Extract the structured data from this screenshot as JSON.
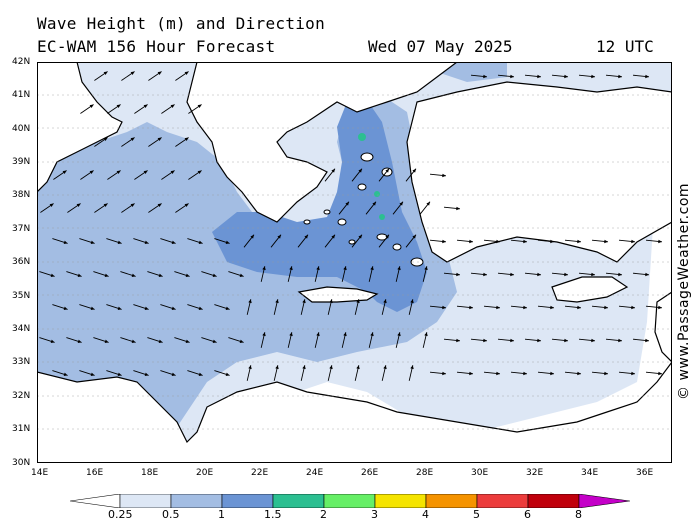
{
  "header": {
    "title_line1": "Wave Height (m) and Direction",
    "title_line2": "EC-WAM 156 Hour Forecast",
    "date": "Wed 07 May 2025",
    "time": "12 UTC"
  },
  "credit": "© www.PassageWeather.com",
  "axes": {
    "lat_labels": [
      "42N",
      "41N",
      "40N",
      "39N",
      "38N",
      "37N",
      "36N",
      "35N",
      "34N",
      "33N",
      "32N",
      "31N",
      "30N"
    ],
    "lon_labels": [
      "14E",
      "16E",
      "18E",
      "20E",
      "22E",
      "24E",
      "26E",
      "28E",
      "30E",
      "32E",
      "34E",
      "36E"
    ]
  },
  "legend": {
    "labels": [
      "0.25",
      "0.5",
      "1",
      "1.5",
      "2",
      "3",
      "4",
      "5",
      "6",
      "8"
    ],
    "colors": [
      "#ffffff",
      "#dde7f5",
      "#a3bde3",
      "#6b94d4",
      "#2cbf91",
      "#66ef66",
      "#f5e400",
      "#f59300",
      "#ec3c3c",
      "#c0000c",
      "#c400c8"
    ]
  },
  "map": {
    "colors": {
      "land": "#ffffff",
      "calm": "#ffffff",
      "light": "#dde7f5",
      "medium": "#a3bde3",
      "strong": "#6b94d4",
      "peak": "#2cbf91"
    }
  }
}
